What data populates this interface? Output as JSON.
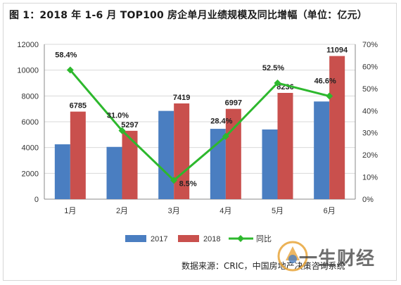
{
  "title": "图 1：2018 年 1-6 月 TOP100 房企单月业绩规模及同比增幅（单位：亿元）",
  "source": "数据来源：CRIC，中国房地产决策咨询系统",
  "watermark": "一生财经",
  "colors": {
    "s2017": "#4a7ec1",
    "s2018": "#c9504d",
    "line": "#2db82d",
    "grid": "#d9d9d9",
    "axis": "#888888"
  },
  "chart_data": {
    "type": "bar",
    "categories": [
      "1月",
      "2月",
      "3月",
      "4月",
      "5月",
      "6月"
    ],
    "series": [
      {
        "name": "2017",
        "values": [
          4250,
          4050,
          6840,
          5450,
          5400,
          7570
        ]
      },
      {
        "name": "2018",
        "values": [
          6785,
          5297,
          7419,
          6997,
          8236,
          11094
        ]
      }
    ],
    "line_series": {
      "name": "同比",
      "values": [
        58.4,
        31.0,
        8.5,
        28.4,
        52.5,
        46.6
      ]
    },
    "y_left": {
      "min": 0,
      "max": 12000,
      "ticks": [
        "0",
        "2000",
        "4000",
        "6000",
        "8000",
        "10000",
        "12000"
      ]
    },
    "y_right": {
      "min": 0,
      "max": 70,
      "ticks": [
        "0%",
        "10%",
        "20%",
        "30%",
        "40%",
        "50%",
        "60%",
        "70%"
      ]
    },
    "bar_labels_2018": [
      "6785",
      "5297",
      "7419",
      "6997",
      "8236",
      "11094"
    ],
    "line_labels": [
      "58.4%",
      "31.0%",
      "8.5%",
      "28.4%",
      "52.5%",
      "46.6%"
    ],
    "grid": true,
    "legend_position": "bottom"
  }
}
